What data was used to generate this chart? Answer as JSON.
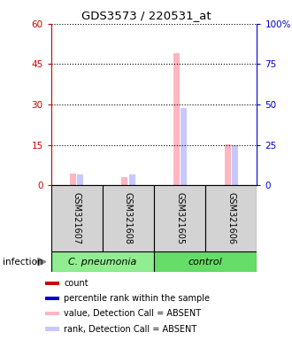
{
  "title": "GDS3573 / 220531_at",
  "samples": [
    "GSM321607",
    "GSM321608",
    "GSM321605",
    "GSM321606"
  ],
  "groups_info": [
    {
      "label": "C. pneumonia",
      "start": 0,
      "end": 2,
      "color": "#90EE90"
    },
    {
      "label": "control",
      "start": 2,
      "end": 4,
      "color": "#66DD66"
    }
  ],
  "value_bars": [
    4.5,
    3.2,
    49.0,
    15.2
  ],
  "rank_bars_pct": [
    7.0,
    6.5,
    48.0,
    25.0
  ],
  "bar_colors_absent_value": "#FFB6C1",
  "bar_colors_absent_rank": "#C8C8FF",
  "ylim_left": [
    0,
    60
  ],
  "ylim_right": [
    0,
    100
  ],
  "yticks_left": [
    0,
    15,
    30,
    45,
    60
  ],
  "yticks_right": [
    0,
    25,
    50,
    75,
    100
  ],
  "yticklabels_right": [
    "0",
    "25",
    "50",
    "75",
    "100%"
  ],
  "left_color": "#CC0000",
  "right_color": "#0000CC",
  "bar_width": 0.12,
  "sample_box_color": "#D3D3D3",
  "legend_items": [
    {
      "color": "#CC0000",
      "label": "count"
    },
    {
      "color": "#0000CC",
      "label": "percentile rank within the sample"
    },
    {
      "color": "#FFB6C1",
      "label": "value, Detection Call = ABSENT"
    },
    {
      "color": "#C8C8FF",
      "label": "rank, Detection Call = ABSENT"
    }
  ]
}
